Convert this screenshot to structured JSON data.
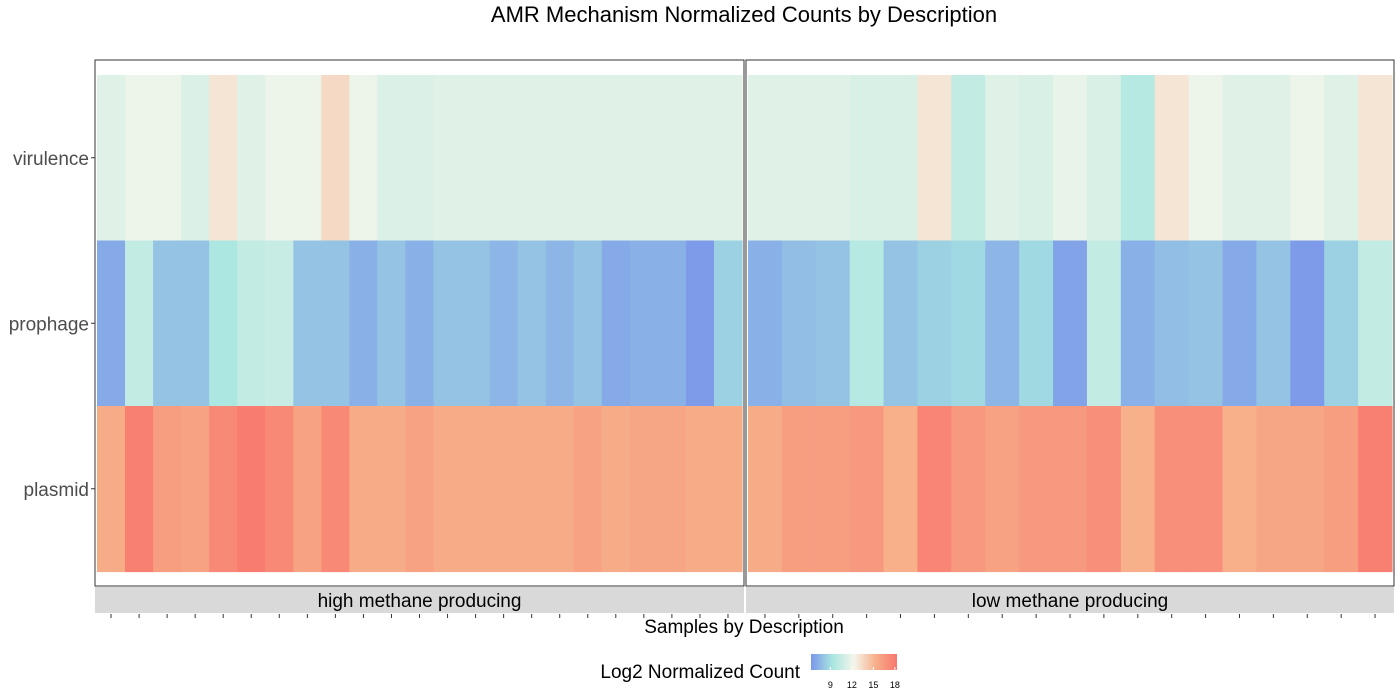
{
  "chart_data": {
    "type": "heatmap",
    "title": "AMR Mechanism Normalized Counts by Description",
    "xlabel": "Samples by Description",
    "rows": [
      "virulence",
      "prophage",
      "plasmid"
    ],
    "color_scale": {
      "title": "Log2 Normalized Count",
      "ticks": [
        9,
        12,
        15,
        18
      ],
      "min": 6.3,
      "max": 18.3,
      "stops": [
        "#7b96ea",
        "#a8e6e0",
        "#f5f5eb",
        "#f7b08a",
        "#f8766d"
      ]
    },
    "panels": [
      {
        "label": "high methane producing",
        "columns": 23,
        "values": {
          "virulence": [
            11.5,
            12.0,
            12.0,
            11.3,
            13.0,
            11.5,
            12.0,
            12.0,
            13.5,
            12.0,
            11.3,
            11.3,
            11.5,
            11.5,
            11.5,
            11.5,
            11.5,
            11.5,
            11.5,
            11.5,
            11.5,
            11.5,
            11.5
          ],
          "prophage": [
            7.0,
            10.3,
            8.0,
            8.0,
            9.5,
            10.3,
            10.5,
            8.0,
            8.0,
            7.3,
            8.0,
            7.3,
            8.0,
            8.0,
            7.5,
            8.0,
            7.5,
            8.0,
            7.0,
            7.3,
            7.3,
            6.5,
            8.5
          ],
          "plasmid": [
            15.5,
            17.8,
            16.3,
            16.0,
            17.3,
            18.0,
            17.3,
            16.0,
            17.3,
            15.5,
            15.5,
            16.0,
            15.5,
            15.5,
            15.5,
            15.5,
            15.5,
            16.0,
            15.5,
            15.8,
            15.8,
            15.5,
            15.5
          ]
        }
      },
      {
        "label": "low methane producing",
        "columns": 19,
        "values": {
          "virulence": [
            11.5,
            11.5,
            11.5,
            11.2,
            11.2,
            13.0,
            10.3,
            11.5,
            11.2,
            11.8,
            11.2,
            9.8,
            13.0,
            12.0,
            11.5,
            11.5,
            12.0,
            11.5,
            13.0
          ],
          "prophage": [
            7.3,
            7.8,
            8.0,
            9.8,
            8.0,
            8.5,
            8.8,
            7.5,
            8.8,
            6.8,
            10.3,
            7.3,
            7.8,
            8.0,
            7.0,
            8.0,
            6.5,
            8.5,
            10.3
          ],
          "plasmid": [
            15.5,
            16.3,
            16.3,
            16.5,
            15.3,
            17.5,
            16.5,
            16.0,
            16.5,
            16.5,
            17.0,
            15.3,
            17.0,
            17.0,
            15.3,
            15.8,
            15.8,
            16.3,
            17.8
          ]
        }
      }
    ]
  }
}
